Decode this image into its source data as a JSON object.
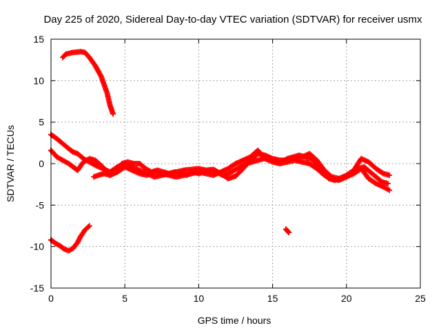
{
  "chart_data": {
    "type": "scatter",
    "title": "Day 225 of 2020, Sidereal Day-to-day VTEC variation (SDTVAR) for receiver usmx",
    "xlabel": "GPS time / hours",
    "ylabel": "SDTVAR / TECUs",
    "xlim": [
      0,
      25
    ],
    "ylim": [
      -15,
      15
    ],
    "xticks": [
      0,
      5,
      10,
      15,
      20,
      25
    ],
    "yticks": [
      -15,
      -10,
      -5,
      0,
      5,
      10,
      15
    ],
    "grid": true,
    "marker": "+",
    "color": "#ff0000",
    "series": [
      {
        "name": "arc-high",
        "x": [
          0.8,
          1.0,
          1.5,
          2.0,
          2.3,
          2.6,
          3.0,
          3.4,
          3.8,
          4.0,
          4.2
        ],
        "y": [
          12.8,
          13.2,
          13.4,
          13.5,
          13.4,
          12.8,
          11.8,
          10.5,
          8.5,
          7.0,
          6.0
        ]
      },
      {
        "name": "arc-low",
        "x": [
          0.0,
          0.3,
          0.6,
          0.9,
          1.2,
          1.5,
          1.8,
          2.0,
          2.3,
          2.6
        ],
        "y": [
          -9.2,
          -9.6,
          -9.9,
          -10.3,
          -10.5,
          -10.2,
          -9.5,
          -8.8,
          -8.0,
          -7.5
        ]
      },
      {
        "name": "arc-small",
        "x": [
          15.9,
          16.0,
          16.1
        ],
        "y": [
          -7.9,
          -8.1,
          -8.3
        ]
      },
      {
        "name": "track-a",
        "x": [
          0.0,
          0.4,
          0.8,
          1.2,
          1.5,
          1.8,
          2.2,
          2.6,
          3.0,
          3.5,
          4.0,
          4.5,
          5.0,
          5.5,
          6.0,
          6.5,
          7.0,
          7.5,
          8.0,
          8.5,
          9.0,
          9.5,
          10.0,
          10.5,
          11.0,
          11.5,
          12.0,
          12.5,
          13.0,
          13.5,
          14.0,
          14.5,
          15.0,
          15.5,
          16.0,
          16.5,
          17.0,
          17.5,
          18.0,
          18.5,
          19.0,
          19.5,
          20.0,
          20.5,
          21.0,
          21.5,
          22.0,
          22.5,
          22.9
        ],
        "y": [
          3.5,
          3.0,
          2.4,
          1.8,
          1.4,
          1.2,
          0.6,
          0.2,
          -0.2,
          -0.6,
          -1.0,
          -0.4,
          0.0,
          -0.4,
          -0.8,
          -1.2,
          -1.6,
          -1.4,
          -1.2,
          -1.0,
          -0.8,
          -0.7,
          -0.6,
          -0.8,
          -0.7,
          -1.2,
          -1.8,
          -1.5,
          -0.6,
          0.4,
          1.2,
          1.0,
          0.6,
          0.4,
          0.4,
          0.6,
          0.8,
          1.2,
          0.4,
          -0.8,
          -1.6,
          -1.8,
          -1.4,
          -0.8,
          0.6,
          0.2,
          -0.6,
          -1.2,
          -1.4
        ]
      },
      {
        "name": "track-b",
        "x": [
          0.0,
          0.4,
          0.8,
          1.2,
          1.5,
          1.8,
          2.2,
          2.6,
          3.0,
          3.5,
          4.0,
          4.5,
          5.0,
          5.5,
          6.0,
          6.5,
          7.0,
          7.5,
          8.0,
          8.5,
          9.0,
          9.5,
          10.0,
          10.5,
          11.0,
          11.5,
          12.0,
          12.5,
          13.0,
          13.5,
          14.0,
          14.5,
          15.0,
          15.5,
          16.0,
          16.5,
          17.0,
          17.5,
          18.0,
          18.5,
          19.0,
          19.5,
          20.0,
          20.5,
          21.0,
          21.5,
          22.0,
          22.5,
          22.9
        ],
        "y": [
          1.6,
          0.8,
          0.4,
          0.0,
          -0.4,
          -0.8,
          0.2,
          0.6,
          0.4,
          -0.4,
          -1.4,
          -1.0,
          -0.4,
          -0.8,
          -1.2,
          -1.4,
          -1.0,
          -1.2,
          -1.4,
          -1.6,
          -1.4,
          -1.2,
          -1.0,
          -1.2,
          -1.4,
          -1.0,
          -0.6,
          0.0,
          0.4,
          0.8,
          1.6,
          0.6,
          0.2,
          0.0,
          0.2,
          0.4,
          0.2,
          0.0,
          -0.6,
          -1.4,
          -1.8,
          -2.0,
          -1.6,
          -1.2,
          -0.6,
          -1.8,
          -2.4,
          -2.8,
          -3.2
        ]
      },
      {
        "name": "track-c",
        "x": [
          2.9,
          3.2,
          3.6,
          4.0,
          4.4,
          4.8,
          5.2,
          5.6,
          6.0,
          6.4,
          6.8,
          7.2,
          7.6,
          8.0,
          8.4,
          8.8,
          9.2,
          9.6,
          10.0,
          10.4,
          10.8,
          11.2,
          11.6,
          12.0,
          12.4,
          12.8,
          13.2,
          13.6,
          14.0,
          14.4,
          14.8,
          15.2,
          15.6,
          16.0,
          16.4,
          16.8,
          17.2,
          17.6,
          18.0,
          18.4,
          18.8,
          19.2,
          19.6,
          20.0,
          20.4,
          20.8,
          21.2,
          21.6,
          22.0,
          22.4,
          22.8
        ],
        "y": [
          -1.6,
          -1.4,
          -1.2,
          -1.4,
          -1.0,
          0.0,
          0.2,
          0.0,
          0.0,
          -0.6,
          -1.0,
          -0.8,
          -1.0,
          -1.2,
          -1.0,
          -1.2,
          -1.4,
          -1.0,
          -1.2,
          -1.0,
          -0.8,
          -1.0,
          -1.4,
          -1.2,
          -0.8,
          -0.4,
          0.0,
          0.2,
          0.4,
          0.6,
          0.6,
          0.4,
          0.2,
          0.6,
          0.8,
          1.0,
          0.8,
          0.6,
          0.0,
          -1.0,
          -1.8,
          -2.0,
          -1.8,
          -1.6,
          -1.2,
          -0.6,
          -0.4,
          -1.0,
          -1.6,
          -2.2,
          -2.4
        ]
      }
    ]
  }
}
